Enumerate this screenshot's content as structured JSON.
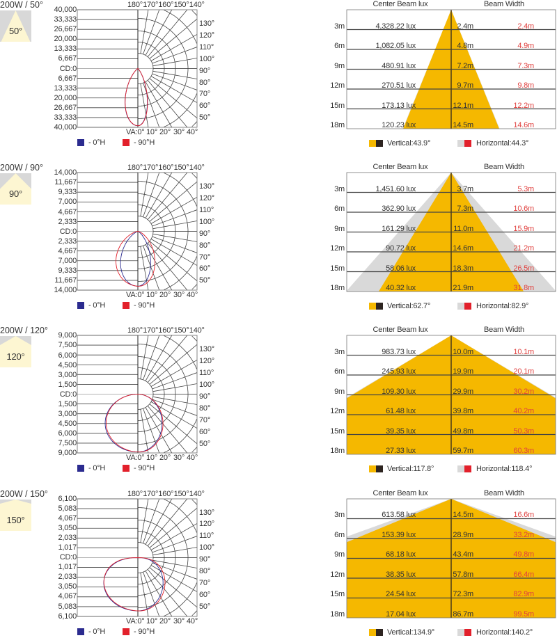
{
  "colors": {
    "beam_vertical": "#f5b800",
    "beam_horizontal": "#d9d9d9",
    "legend_0H": "#2b2b8f",
    "legend_90H": "#e2202b",
    "vertical_dark": "#2d2420",
    "thumb_bg": "#d8d8d8",
    "thumb_beam": "#fdf6d2"
  },
  "polar_common": {
    "top_angle_labels": [
      "180°",
      "170°",
      "160°",
      "150°",
      "140°"
    ],
    "right_angle_labels": [
      "130°",
      "120°",
      "110°",
      "100°",
      "90°",
      "80°",
      "70°",
      "60°",
      "50°"
    ],
    "bottom_angle_labels": [
      "VA:0°",
      "10°",
      "20°",
      "30°",
      "40°"
    ],
    "legend_0H": "- 0°H",
    "legend_90H": "- 90°H"
  },
  "table_common": {
    "header_lux": "Center Beam lux",
    "header_width": "Beam Width",
    "distances": [
      "3m",
      "6m",
      "9m",
      "12m",
      "15m",
      "18m"
    ]
  },
  "blocks": [
    {
      "title": "200W / 50°",
      "thumb_label": "50°",
      "beam_angle": 50,
      "cd_ticks": [
        "40,000",
        "33,333",
        "26,667",
        "20,000",
        "13,333",
        "6,667",
        "CD:0",
        "6,667",
        "13,333",
        "20,000",
        "26,667",
        "33,333",
        "40,000"
      ],
      "cd_max": 40000,
      "lux": [
        "4,328.22 lux",
        "1,082.05 lux",
        "480.91 lux",
        "270.51 lux",
        "173.13 lux",
        "120.23 lux"
      ],
      "v_width": [
        "2.4m",
        "4.8m",
        "7.2m",
        "9.7m",
        "12.1m",
        "14.5m"
      ],
      "h_width": [
        "2.4m",
        "4.9m",
        "7.3m",
        "9.8m",
        "12.2m",
        "14.6m"
      ],
      "vertical_label": "Vertical:43.9°",
      "horizontal_label": "Horizontal:44.3°",
      "vertical_angle": 43.9,
      "horizontal_angle": 44.3,
      "peak_cd": 38954
    },
    {
      "title": "200W / 90°",
      "thumb_label": "90°",
      "beam_angle": 90,
      "cd_ticks": [
        "14,000",
        "11,667",
        "9,333",
        "7,000",
        "4,667",
        "2,333",
        "CD:0",
        "2,333",
        "4,667",
        "7,000",
        "9,333",
        "11,667",
        "14,000"
      ],
      "cd_max": 14000,
      "lux": [
        "1,451.60 lux",
        "362.90 lux",
        "161.29 lux",
        "90.72 lux",
        "58.06 lux",
        "40.32 lux"
      ],
      "v_width": [
        "3.7m",
        "7.3m",
        "11.0m",
        "14.6m",
        "18.3m",
        "21.9m"
      ],
      "h_width": [
        "5.3m",
        "10.6m",
        "15.9m",
        "21.2m",
        "26.5m",
        "31.8m"
      ],
      "vertical_label": "Vertical:62.7°",
      "horizontal_label": "Horizontal:82.9°",
      "vertical_angle": 62.7,
      "horizontal_angle": 82.9,
      "peak_cd": 13064
    },
    {
      "title": "200W / 120°",
      "thumb_label": "120°",
      "beam_angle": 120,
      "cd_ticks": [
        "9,000",
        "7,500",
        "6,000",
        "4,500",
        "3,000",
        "1,500",
        "CD:0",
        "1,500",
        "3,000",
        "4,500",
        "6,000",
        "7,500",
        "9,000"
      ],
      "cd_max": 9000,
      "lux": [
        "983.73 lux",
        "245.93 lux",
        "109.30 lux",
        "61.48 lux",
        "39.35 lux",
        "27.33 lux"
      ],
      "v_width": [
        "10.0m",
        "19.9m",
        "29.9m",
        "39.8m",
        "49.8m",
        "59.7m"
      ],
      "h_width": [
        "10.1m",
        "20.1m",
        "30.2m",
        "40.2m",
        "50.3m",
        "60.3m"
      ],
      "vertical_label": "Vertical:117.8°",
      "horizontal_label": "Horizontal:118.4°",
      "vertical_angle": 117.8,
      "horizontal_angle": 118.4,
      "peak_cd": 8854
    },
    {
      "title": "200W / 150°",
      "thumb_label": "150°",
      "beam_angle": 150,
      "cd_ticks": [
        "6,100",
        "5,083",
        "4,067",
        "3,050",
        "2,033",
        "1,017",
        "CD:0",
        "1,017",
        "2,033",
        "3,050",
        "4,067",
        "5,083",
        "6,100"
      ],
      "cd_max": 6100,
      "lux": [
        "613.58 lux",
        "153.39 lux",
        "68.18 lux",
        "38.35 lux",
        "24.54 lux",
        "17.04 lux"
      ],
      "v_width": [
        "14.5m",
        "28.9m",
        "43.4m",
        "57.8m",
        "72.3m",
        "86.7m"
      ],
      "h_width": [
        "16.6m",
        "33.2m",
        "49.8m",
        "66.4m",
        "82.9m",
        "99.5m"
      ],
      "vertical_label": "Vertical:134.9°",
      "horizontal_label": "Horizontal:140.2°",
      "vertical_angle": 134.9,
      "horizontal_angle": 140.2,
      "peak_cd": 5522
    }
  ]
}
